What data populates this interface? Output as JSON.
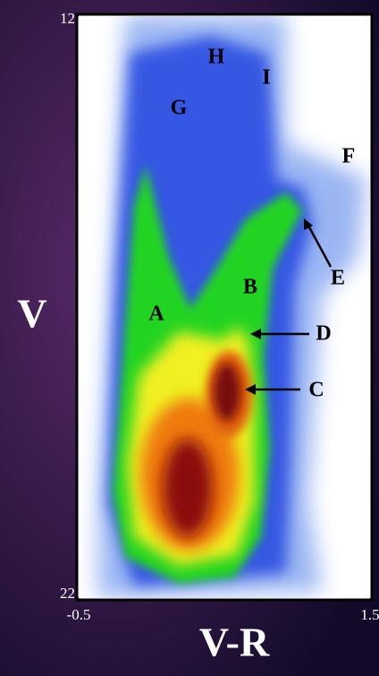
{
  "chart_data": {
    "type": "hess",
    "x_label": "V-R",
    "y_label": "V",
    "xlim": [
      -0.5,
      1.5
    ],
    "ylim": [
      22,
      12
    ],
    "xticks": [
      -0.5,
      1.5
    ],
    "yticks": [
      12,
      22
    ],
    "annotations": [
      "H",
      "I",
      "G",
      "F",
      "E",
      "B",
      "A",
      "D",
      "C"
    ]
  }
}
